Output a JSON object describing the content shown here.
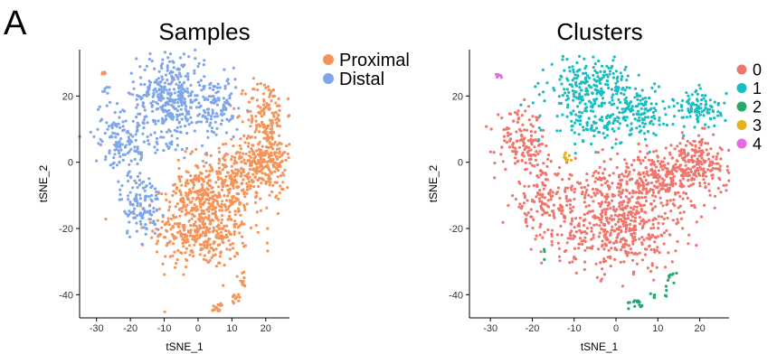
{
  "panel_label": "A",
  "chart_data": [
    {
      "type": "scatter",
      "title": "Samples",
      "xlabel": "tSNE_1",
      "ylabel": "tSNE_2",
      "xlim": [
        -35,
        27
      ],
      "ylim": [
        -47,
        34
      ],
      "xticks": [
        -30,
        -20,
        -10,
        0,
        10,
        20
      ],
      "yticks": [
        -40,
        -20,
        0,
        20
      ],
      "grid": false,
      "legend_position": "right-top",
      "series": [
        {
          "name": "Proximal",
          "color": "#F4945A",
          "clusters": [
            {
              "cx": 1,
              "cy": -20,
              "sx": 7,
              "sy": 6,
              "n": 420
            },
            {
              "cx": 11,
              "cy": -5,
              "sx": 7,
              "sy": 5,
              "n": 300
            },
            {
              "cx": 20,
              "cy": 2,
              "sx": 4,
              "sy": 5,
              "n": 200
            },
            {
              "cx": 20,
              "cy": 15,
              "sx": 3,
              "sy": 5,
              "n": 110
            },
            {
              "cx": -1,
              "cy": -9,
              "sx": 4,
              "sy": 3,
              "n": 80
            },
            {
              "cx": 6,
              "cy": -44,
              "sx": 1,
              "sy": 0.8,
              "n": 14
            },
            {
              "cx": 11,
              "cy": -41,
              "sx": 0.8,
              "sy": 0.8,
              "n": 10
            },
            {
              "cx": 13,
              "cy": -35,
              "sx": 1,
              "sy": 1.5,
              "n": 10
            },
            {
              "cx": -28,
              "cy": 27,
              "sx": 0.6,
              "sy": 0.4,
              "n": 6
            }
          ]
        },
        {
          "name": "Distal",
          "color": "#7FA6E8",
          "clusters": [
            {
              "cx": -8,
              "cy": 20,
              "sx": 5,
              "sy": 7,
              "n": 380
            },
            {
              "cx": 6,
              "cy": 16,
              "sx": 3,
              "sy": 5,
              "n": 110
            },
            {
              "cx": -23,
              "cy": 9,
              "sx": 4,
              "sy": 5,
              "n": 110
            },
            {
              "cx": -17,
              "cy": -13,
              "sx": 3,
              "sy": 5,
              "n": 120
            },
            {
              "cx": -20,
              "cy": 2,
              "sx": 3,
              "sy": 3,
              "n": 30
            },
            {
              "cx": -27,
              "cy": 22,
              "sx": 0.6,
              "sy": 0.6,
              "n": 4
            }
          ]
        }
      ]
    },
    {
      "type": "scatter",
      "title": "Clusters",
      "xlabel": "tSNE_1",
      "ylabel": "tSNE_2",
      "xlim": [
        -35,
        27
      ],
      "ylim": [
        -47,
        34
      ],
      "xticks": [
        -30,
        -20,
        -10,
        0,
        10,
        20
      ],
      "yticks": [
        -40,
        -20,
        0,
        20
      ],
      "grid": false,
      "legend_position": "right-top",
      "series": [
        {
          "name": "0",
          "color": "#F0756C",
          "clusters": [
            {
              "cx": 1,
              "cy": -20,
              "sx": 7,
              "sy": 6,
              "n": 420
            },
            {
              "cx": 11,
              "cy": -5,
              "sx": 7,
              "sy": 5,
              "n": 300
            },
            {
              "cx": 20,
              "cy": 0,
              "sx": 4,
              "sy": 4,
              "n": 150
            },
            {
              "cx": -17,
              "cy": -13,
              "sx": 4,
              "sy": 5,
              "n": 150
            },
            {
              "cx": -23,
              "cy": 7,
              "sx": 3,
              "sy": 4,
              "n": 100
            },
            {
              "cx": -2,
              "cy": -7,
              "sx": 5,
              "sy": 3,
              "n": 90
            },
            {
              "cx": -20,
              "cy": 2,
              "sx": 3,
              "sy": 3,
              "n": 40
            }
          ]
        },
        {
          "name": "1",
          "color": "#19BDC2",
          "clusters": [
            {
              "cx": -6,
              "cy": 22,
              "sx": 5,
              "sy": 5,
              "n": 260
            },
            {
              "cx": 6,
              "cy": 16,
              "sx": 3,
              "sy": 4,
              "n": 110
            },
            {
              "cx": 20,
              "cy": 16,
              "sx": 3,
              "sy": 3,
              "n": 100
            },
            {
              "cx": -4,
              "cy": 11,
              "sx": 4,
              "sy": 3,
              "n": 80
            }
          ]
        },
        {
          "name": "2",
          "color": "#25A96B",
          "clusters": [
            {
              "cx": 5,
              "cy": -43,
              "sx": 1.2,
              "sy": 0.8,
              "n": 14
            },
            {
              "cx": 10,
              "cy": -40,
              "sx": 1,
              "sy": 0.8,
              "n": 8
            },
            {
              "cx": 13,
              "cy": -35,
              "sx": 0.8,
              "sy": 1.5,
              "n": 9
            },
            {
              "cx": -17,
              "cy": -28,
              "sx": 0.5,
              "sy": 0.8,
              "n": 3
            }
          ]
        },
        {
          "name": "3",
          "color": "#E6B21D",
          "clusters": [
            {
              "cx": -11.5,
              "cy": 1.5,
              "sx": 0.7,
              "sy": 0.8,
              "n": 8
            }
          ]
        },
        {
          "name": "4",
          "color": "#E768E2",
          "clusters": [
            {
              "cx": -28,
              "cy": 26,
              "sx": 0.7,
              "sy": 0.4,
              "n": 6
            }
          ]
        }
      ]
    }
  ]
}
